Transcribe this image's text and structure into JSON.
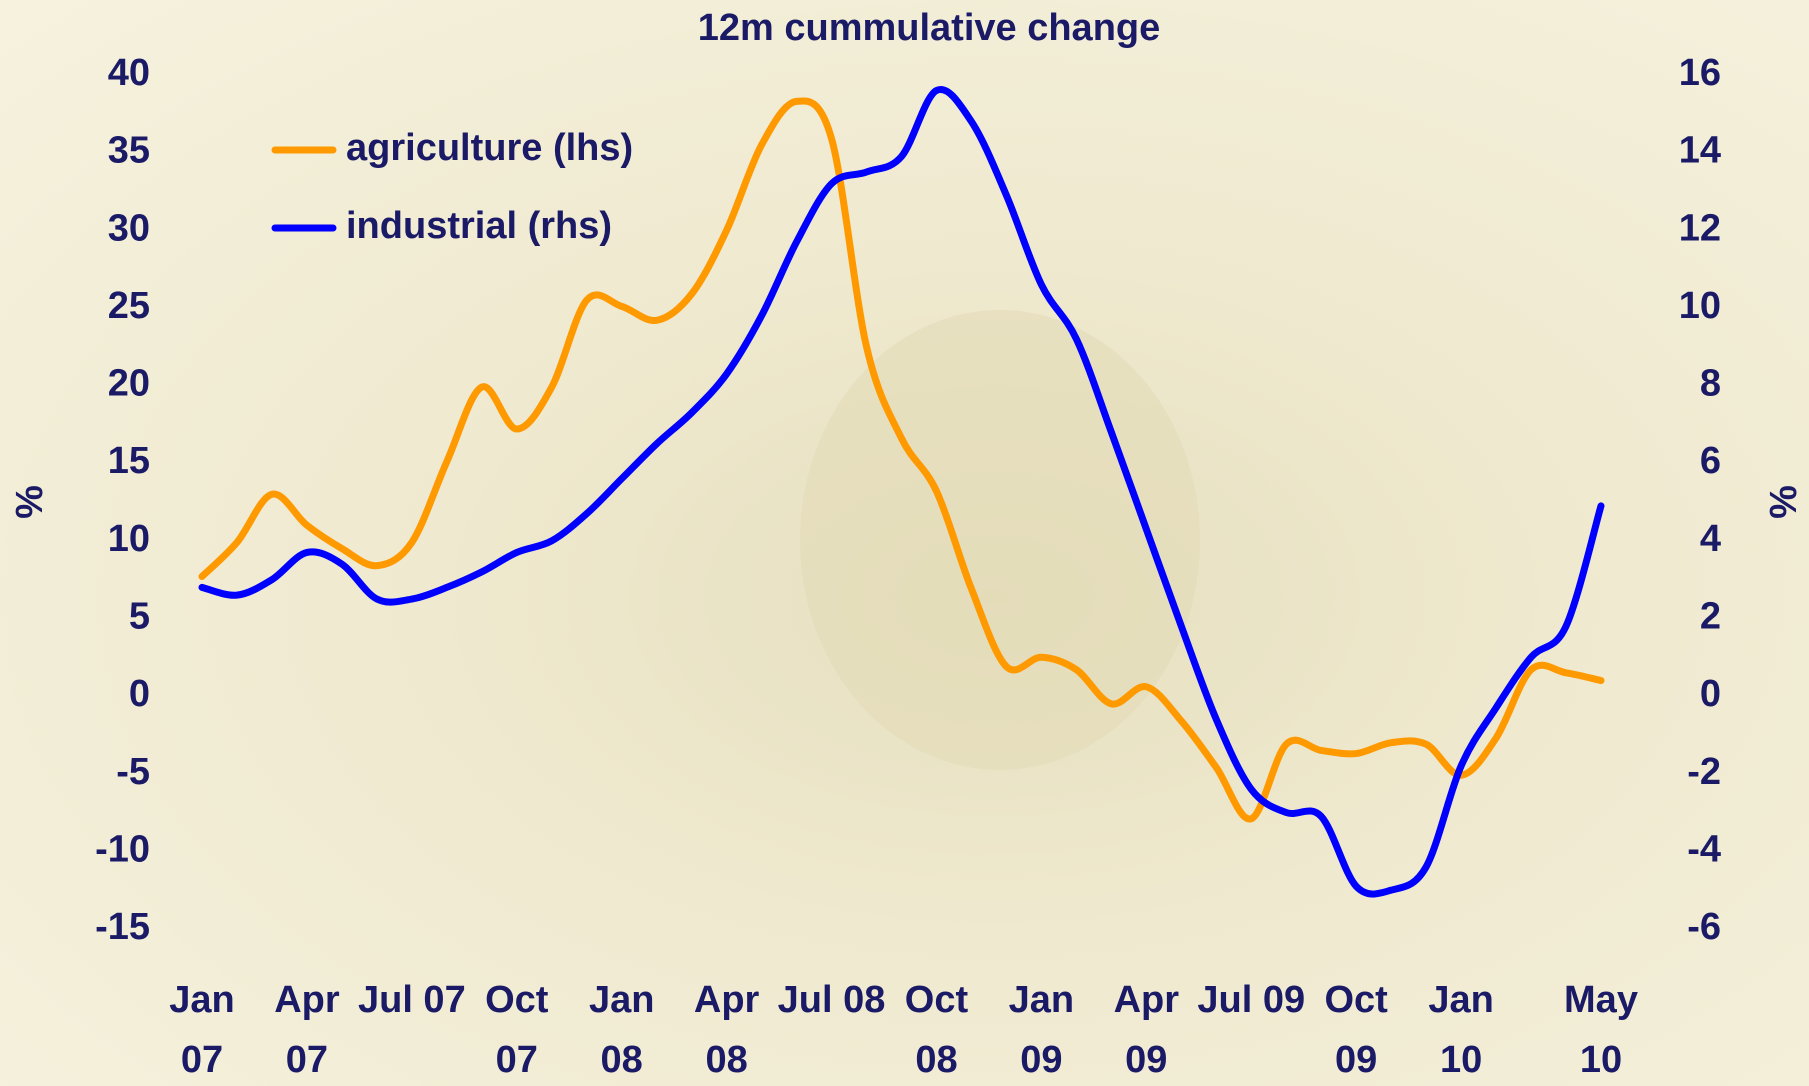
{
  "chart_data": {
    "type": "line",
    "title": "12m cummulative change",
    "categories": [
      "Jan 07",
      null,
      null,
      "Apr 07",
      null,
      null,
      "Jul 07",
      null,
      null,
      "Oct 07",
      null,
      null,
      "Jan 08",
      null,
      null,
      "Apr 08",
      null,
      null,
      "Jul 08",
      null,
      null,
      "Oct 08",
      null,
      null,
      "Jan 09",
      null,
      null,
      "Apr 09",
      null,
      null,
      "Jul 09",
      null,
      null,
      "Oct 09",
      null,
      null,
      "Jan 10",
      null,
      null,
      null,
      "May 10"
    ],
    "series": [
      {
        "name": "agriculture (lhs)",
        "color": "#ff9900",
        "values": [
          7.7,
          9.9,
          13.0,
          11.0,
          9.5,
          8.4,
          9.9,
          15.1,
          19.9,
          17.2,
          19.9,
          25.5,
          25.1,
          24.2,
          25.9,
          30.0,
          35.5,
          38.3,
          35.9,
          22.5,
          16.6,
          13.2,
          6.9,
          1.9,
          2.5,
          1.7,
          -0.5,
          0.6,
          -1.6,
          -4.6,
          -7.9,
          -3.1,
          -3.5,
          -3.7,
          -3.0,
          -3.1,
          -5.1,
          -2.7,
          1.7,
          1.5,
          1.0
        ]
      },
      {
        "name": "industrial (rhs)",
        "color": "#0000ff",
        "axis": "y2",
        "values": [
          2.8,
          2.6,
          3.0,
          3.7,
          3.4,
          2.5,
          2.5,
          2.8,
          3.2,
          3.7,
          4.0,
          4.7,
          5.6,
          6.5,
          7.3,
          8.3,
          9.8,
          11.7,
          13.2,
          13.5,
          13.9,
          15.6,
          14.8,
          12.9,
          10.6,
          9.2,
          6.8,
          4.3,
          1.8,
          -0.6,
          -2.4,
          -3.0,
          -3.1,
          -4.9,
          -5.0,
          -4.4,
          -1.8,
          -0.3,
          1.0,
          1.8,
          4.9
        ]
      }
    ],
    "ylabel": "%",
    "y2label": "%",
    "ylim": [
      -15,
      40
    ],
    "yticks": [
      -15,
      -10,
      -5,
      0,
      5,
      10,
      15,
      20,
      25,
      30,
      35,
      40
    ],
    "y2lim": [
      -6,
      16
    ],
    "y2ticks": [
      -6,
      -4,
      -2,
      0,
      2,
      4,
      6,
      8,
      10,
      12,
      14,
      16
    ],
    "legend": "upper left",
    "grid": false
  }
}
